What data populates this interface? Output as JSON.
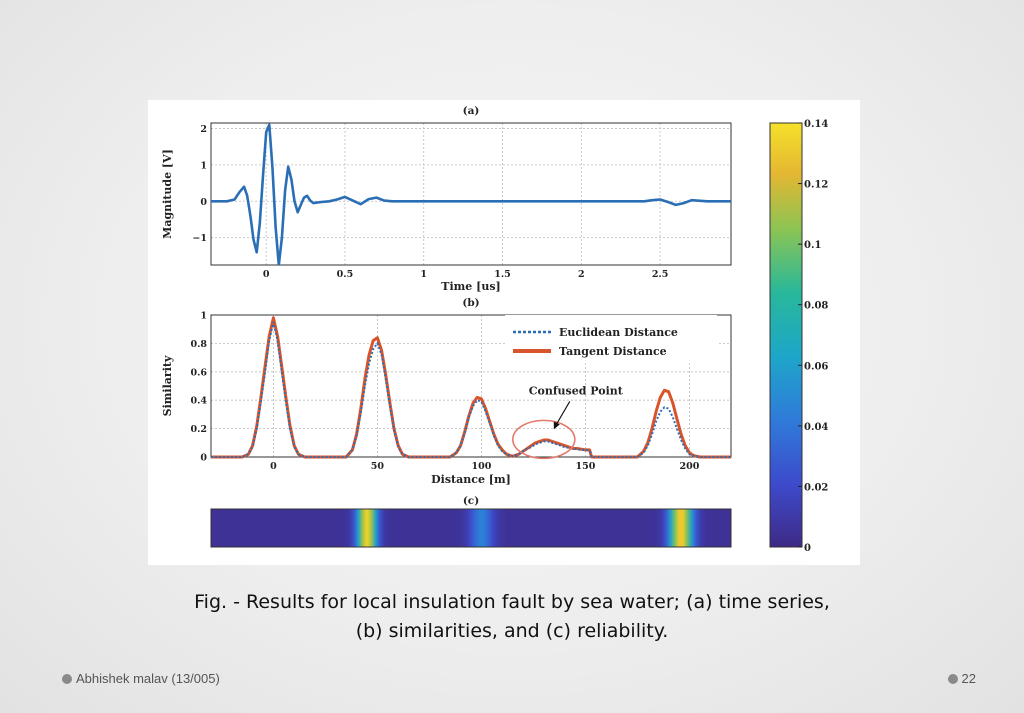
{
  "slide": {
    "caption_line1": "Fig. - Results for local insulation fault by sea water; (a) time series,",
    "caption_line2": "(b) similarities, and (c) reliability.",
    "author": "Abhishek malav (13/005)",
    "page_number": "22"
  },
  "colors": {
    "series_a": "#2a6fb5",
    "euclidean": "#2a6fb5",
    "tangent": "#d9542a",
    "annotation_circle": "#e47a6e"
  },
  "chart_data": [
    {
      "id": "a",
      "type": "line",
      "title": "(a)",
      "xlabel": "Time [us]",
      "ylabel": "Magnitude [V]",
      "xlim": [
        -0.35,
        2.95
      ],
      "ylim": [
        -1.75,
        2.15
      ],
      "xticks": [
        0,
        0.5,
        1,
        1.5,
        2,
        2.5
      ],
      "xtick_labels": [
        "0",
        "0.5",
        "1",
        "1.5",
        "2",
        "2.5"
      ],
      "yticks": [
        -1,
        0,
        1,
        2
      ],
      "ytick_labels": [
        "−1",
        "0",
        "1",
        "2"
      ],
      "series": [
        {
          "name": "Time series",
          "x": [
            -0.35,
            -0.25,
            -0.2,
            -0.17,
            -0.14,
            -0.12,
            -0.1,
            -0.08,
            -0.06,
            -0.04,
            -0.02,
            0,
            0.02,
            0.04,
            0.06,
            0.08,
            0.1,
            0.12,
            0.14,
            0.16,
            0.18,
            0.2,
            0.22,
            0.24,
            0.26,
            0.28,
            0.3,
            0.35,
            0.4,
            0.45,
            0.5,
            0.55,
            0.6,
            0.65,
            0.7,
            0.75,
            0.8,
            0.9,
            1.0,
            1.5,
            2.0,
            2.3,
            2.4,
            2.45,
            2.5,
            2.55,
            2.6,
            2.65,
            2.7,
            2.8,
            2.95
          ],
          "y": [
            0,
            0,
            0.05,
            0.25,
            0.4,
            0.15,
            -0.4,
            -1.05,
            -1.4,
            -0.6,
            0.7,
            1.9,
            2.1,
            0.9,
            -0.7,
            -1.75,
            -1.0,
            0.3,
            0.95,
            0.6,
            0,
            -0.3,
            -0.1,
            0.1,
            0.15,
            0.02,
            -0.05,
            -0.02,
            0,
            0.05,
            0.12,
            0.02,
            -0.08,
            0.06,
            0.1,
            0.02,
            0,
            0,
            0,
            0,
            0,
            0,
            0,
            0.03,
            0.05,
            -0.02,
            -0.1,
            -0.05,
            0.03,
            0,
            0
          ]
        }
      ]
    },
    {
      "id": "b",
      "type": "line",
      "title": "(b)",
      "xlabel": "Distance [m]",
      "ylabel": "Similarity",
      "xlim": [
        -30,
        220
      ],
      "ylim": [
        0,
        1
      ],
      "xticks": [
        0,
        50,
        100,
        150,
        200
      ],
      "xtick_labels": [
        "0",
        "50",
        "100",
        "150",
        "200"
      ],
      "yticks": [
        0,
        0.2,
        0.4,
        0.6,
        0.8,
        1
      ],
      "ytick_labels": [
        "0",
        "0.2",
        "0.4",
        "0.6",
        "0.8",
        "1"
      ],
      "legend": [
        "Euclidean Distance",
        "Tangent Distance"
      ],
      "legend_position": "top-right",
      "annotation": {
        "text": "Confused Point",
        "x": 130,
        "y": 0.11
      },
      "series": [
        {
          "name": "Tangent Distance",
          "x": [
            -30,
            -15,
            -12,
            -10,
            -8,
            -6,
            -4,
            -2,
            0,
            2,
            4,
            6,
            8,
            10,
            12,
            15,
            35,
            38,
            40,
            42,
            44,
            46,
            48,
            50,
            52,
            54,
            56,
            58,
            60,
            62,
            65,
            85,
            88,
            90,
            92,
            94,
            96,
            98,
            100,
            102,
            104,
            106,
            108,
            110,
            112,
            115,
            118,
            120,
            122,
            124,
            126,
            128,
            130,
            132,
            134,
            136,
            138,
            140,
            142,
            144,
            146,
            148,
            150,
            152,
            153,
            155,
            175,
            178,
            180,
            182,
            184,
            186,
            188,
            190,
            192,
            194,
            196,
            198,
            200,
            202,
            205,
            220
          ],
          "y": [
            0,
            0,
            0.02,
            0.08,
            0.22,
            0.42,
            0.64,
            0.85,
            0.98,
            0.85,
            0.64,
            0.42,
            0.22,
            0.08,
            0.02,
            0,
            0,
            0.05,
            0.16,
            0.34,
            0.55,
            0.72,
            0.82,
            0.84,
            0.75,
            0.58,
            0.38,
            0.2,
            0.08,
            0.02,
            0,
            0,
            0.03,
            0.08,
            0.18,
            0.29,
            0.38,
            0.42,
            0.41,
            0.34,
            0.25,
            0.16,
            0.09,
            0.05,
            0.02,
            0.005,
            0.02,
            0.04,
            0.06,
            0.08,
            0.1,
            0.11,
            0.12,
            0.12,
            0.11,
            0.1,
            0.09,
            0.08,
            0.07,
            0.06,
            0.06,
            0.055,
            0.05,
            0.05,
            0,
            0,
            0,
            0.04,
            0.1,
            0.2,
            0.32,
            0.42,
            0.47,
            0.46,
            0.38,
            0.27,
            0.16,
            0.08,
            0.03,
            0.01,
            0,
            0
          ]
        },
        {
          "name": "Euclidean Distance",
          "x": [
            -30,
            -15,
            -12,
            -10,
            -8,
            -6,
            -4,
            -2,
            0,
            2,
            4,
            6,
            8,
            10,
            12,
            15,
            35,
            38,
            40,
            42,
            44,
            46,
            48,
            50,
            52,
            54,
            56,
            58,
            60,
            62,
            65,
            85,
            88,
            90,
            92,
            94,
            96,
            98,
            100,
            102,
            104,
            106,
            108,
            110,
            112,
            115,
            118,
            120,
            122,
            124,
            126,
            128,
            130,
            132,
            134,
            136,
            138,
            140,
            142,
            144,
            146,
            148,
            150,
            152,
            153,
            155,
            175,
            178,
            180,
            182,
            184,
            186,
            188,
            190,
            192,
            194,
            196,
            198,
            200,
            202,
            205,
            220
          ],
          "y": [
            0,
            0,
            0.02,
            0.07,
            0.2,
            0.39,
            0.6,
            0.82,
            0.95,
            0.82,
            0.6,
            0.39,
            0.2,
            0.07,
            0.02,
            0,
            0,
            0.05,
            0.15,
            0.31,
            0.5,
            0.66,
            0.76,
            0.8,
            0.72,
            0.55,
            0.36,
            0.19,
            0.07,
            0.02,
            0,
            0,
            0.03,
            0.08,
            0.17,
            0.28,
            0.36,
            0.4,
            0.39,
            0.32,
            0.24,
            0.15,
            0.08,
            0.04,
            0.02,
            0.005,
            0.02,
            0.04,
            0.06,
            0.07,
            0.09,
            0.1,
            0.11,
            0.11,
            0.1,
            0.09,
            0.08,
            0.07,
            0.065,
            0.06,
            0.055,
            0.05,
            0.05,
            0.045,
            0,
            0,
            0,
            0.03,
            0.08,
            0.16,
            0.25,
            0.32,
            0.35,
            0.34,
            0.28,
            0.2,
            0.12,
            0.06,
            0.02,
            0.01,
            0,
            0
          ]
        }
      ]
    },
    {
      "id": "c",
      "type": "heatmap",
      "title": "(c)",
      "xlim": [
        -30,
        220
      ],
      "bands": [
        {
          "center": 45,
          "width": 10,
          "value": 0.13
        },
        {
          "center": 100,
          "width": 12,
          "value": 0.04
        },
        {
          "center": 196,
          "width": 12,
          "value": 0.13
        }
      ],
      "base_value": 0.005
    },
    {
      "id": "colorbar",
      "type": "colorbar",
      "range": [
        0,
        0.14
      ],
      "ticks": [
        0,
        0.02,
        0.04,
        0.06,
        0.08,
        0.1,
        0.12,
        0.14
      ],
      "tick_labels": [
        "0",
        "0.02",
        "0.04",
        "0.06",
        "0.08",
        "0.1",
        "0.12",
        "0.14"
      ]
    }
  ]
}
